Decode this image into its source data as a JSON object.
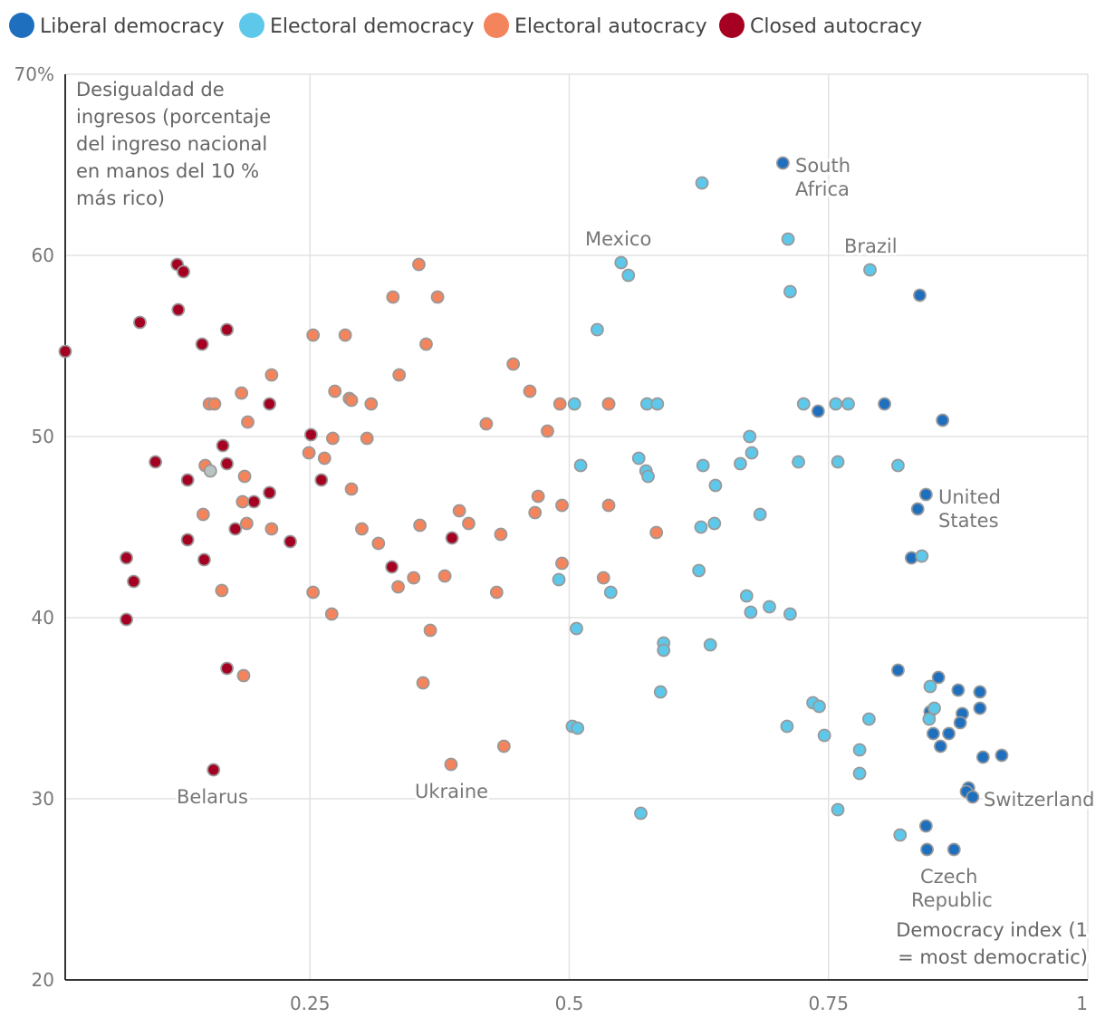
{
  "chart_data": {
    "type": "scatter",
    "title": "",
    "ylabel_lines": [
      "Desigualdad de",
      "ingresos (porcentaje",
      "del ingreso nacional",
      "en manos del 10 %",
      "más rico)"
    ],
    "xlabel_lines": [
      "Democracy index (1",
      "= most democratic)"
    ],
    "xlim": [
      0.014,
      1
    ],
    "ylim": [
      20,
      70
    ],
    "grid": true,
    "legend_position": "top",
    "xticks": {
      "values": [
        0.25,
        0.5,
        0.75,
        1
      ],
      "labels": [
        "0.25",
        "0.5",
        "0.75",
        "1"
      ]
    },
    "yticks": {
      "values": [
        20,
        30,
        40,
        50,
        60,
        70
      ],
      "labels": [
        "20",
        "30",
        "40",
        "50",
        "60",
        "70%"
      ]
    },
    "series": [
      {
        "name": "Liberal democracy",
        "color": "#1f6fbf",
        "points": [
          [
            0.706,
            65.1
          ],
          [
            0.74,
            51.4
          ],
          [
            0.804,
            51.8
          ],
          [
            0.838,
            57.8
          ],
          [
            0.86,
            50.9
          ],
          [
            0.844,
            46.8
          ],
          [
            0.836,
            46.0
          ],
          [
            0.83,
            43.3
          ],
          [
            0.817,
            37.1
          ],
          [
            0.856,
            36.7
          ],
          [
            0.875,
            36.0
          ],
          [
            0.896,
            35.9
          ],
          [
            0.848,
            34.8
          ],
          [
            0.879,
            34.7
          ],
          [
            0.896,
            35.0
          ],
          [
            0.877,
            34.2
          ],
          [
            0.851,
            33.6
          ],
          [
            0.866,
            33.6
          ],
          [
            0.858,
            32.9
          ],
          [
            0.899,
            32.3
          ],
          [
            0.917,
            32.4
          ],
          [
            0.885,
            30.6
          ],
          [
            0.883,
            30.4
          ],
          [
            0.889,
            30.1
          ],
          [
            0.844,
            28.5
          ],
          [
            0.845,
            27.2
          ],
          [
            0.871,
            27.2
          ]
        ]
      },
      {
        "name": "Electoral democracy",
        "color": "#5ec8ea",
        "points": [
          [
            0.49,
            42.1
          ],
          [
            0.507,
            39.4
          ],
          [
            0.503,
            34.0
          ],
          [
            0.508,
            33.9
          ],
          [
            0.511,
            48.4
          ],
          [
            0.505,
            51.8
          ],
          [
            0.527,
            55.9
          ],
          [
            0.538,
            51.8
          ],
          [
            0.54,
            41.4
          ],
          [
            0.55,
            59.6
          ],
          [
            0.557,
            58.9
          ],
          [
            0.567,
            48.8
          ],
          [
            0.574,
            48.1
          ],
          [
            0.576,
            47.8
          ],
          [
            0.575,
            51.8
          ],
          [
            0.585,
            51.8
          ],
          [
            0.591,
            38.6
          ],
          [
            0.591,
            38.2
          ],
          [
            0.588,
            35.9
          ],
          [
            0.569,
            29.2
          ],
          [
            0.628,
            64.0
          ],
          [
            0.625,
            42.6
          ],
          [
            0.627,
            45.0
          ],
          [
            0.629,
            48.4
          ],
          [
            0.636,
            38.5
          ],
          [
            0.64,
            45.2
          ],
          [
            0.641,
            47.3
          ],
          [
            0.665,
            48.5
          ],
          [
            0.671,
            41.2
          ],
          [
            0.674,
            50.0
          ],
          [
            0.676,
            49.1
          ],
          [
            0.675,
            40.3
          ],
          [
            0.684,
            45.7
          ],
          [
            0.693,
            40.6
          ],
          [
            0.71,
            34.0
          ],
          [
            0.711,
            60.9
          ],
          [
            0.713,
            58.0
          ],
          [
            0.713,
            40.2
          ],
          [
            0.721,
            48.6
          ],
          [
            0.726,
            51.8
          ],
          [
            0.735,
            35.3
          ],
          [
            0.741,
            35.1
          ],
          [
            0.746,
            33.5
          ],
          [
            0.757,
            51.8
          ],
          [
            0.759,
            48.6
          ],
          [
            0.759,
            29.4
          ],
          [
            0.769,
            51.8
          ],
          [
            0.78,
            32.7
          ],
          [
            0.78,
            31.4
          ],
          [
            0.789,
            34.4
          ],
          [
            0.79,
            59.2
          ],
          [
            0.817,
            48.4
          ],
          [
            0.819,
            28.0
          ],
          [
            0.84,
            43.4
          ],
          [
            0.848,
            36.2
          ],
          [
            0.847,
            34.4
          ],
          [
            0.852,
            35.0
          ]
        ]
      },
      {
        "name": "Electoral autocracy",
        "color": "#f4845c",
        "points": [
          [
            0.153,
            51.8
          ],
          [
            0.158,
            51.8
          ],
          [
            0.149,
            48.4
          ],
          [
            0.147,
            45.7
          ],
          [
            0.165,
            41.5
          ],
          [
            0.184,
            52.4
          ],
          [
            0.187,
            47.8
          ],
          [
            0.185,
            46.4
          ],
          [
            0.19,
            50.8
          ],
          [
            0.189,
            45.2
          ],
          [
            0.213,
            53.4
          ],
          [
            0.213,
            44.9
          ],
          [
            0.186,
            36.8
          ],
          [
            0.253,
            55.6
          ],
          [
            0.249,
            49.1
          ],
          [
            0.253,
            41.4
          ],
          [
            0.264,
            48.8
          ],
          [
            0.272,
            49.9
          ],
          [
            0.274,
            52.5
          ],
          [
            0.284,
            55.6
          ],
          [
            0.288,
            52.1
          ],
          [
            0.29,
            52.0
          ],
          [
            0.29,
            47.1
          ],
          [
            0.271,
            40.2
          ],
          [
            0.3,
            44.9
          ],
          [
            0.305,
            49.9
          ],
          [
            0.309,
            51.8
          ],
          [
            0.316,
            44.1
          ],
          [
            0.33,
            57.7
          ],
          [
            0.336,
            53.4
          ],
          [
            0.335,
            41.7
          ],
          [
            0.35,
            42.2
          ],
          [
            0.355,
            59.5
          ],
          [
            0.356,
            45.1
          ],
          [
            0.362,
            55.1
          ],
          [
            0.359,
            36.4
          ],
          [
            0.366,
            39.3
          ],
          [
            0.373,
            57.7
          ],
          [
            0.38,
            42.3
          ],
          [
            0.386,
            31.9
          ],
          [
            0.394,
            45.9
          ],
          [
            0.403,
            45.2
          ],
          [
            0.42,
            50.7
          ],
          [
            0.43,
            41.4
          ],
          [
            0.434,
            44.6
          ],
          [
            0.437,
            32.9
          ],
          [
            0.446,
            54.0
          ],
          [
            0.462,
            52.5
          ],
          [
            0.467,
            45.8
          ],
          [
            0.47,
            46.7
          ],
          [
            0.479,
            50.3
          ],
          [
            0.491,
            51.8
          ],
          [
            0.493,
            46.2
          ],
          [
            0.493,
            43.0
          ],
          [
            0.533,
            42.2
          ],
          [
            0.538,
            51.8
          ],
          [
            0.538,
            46.2
          ],
          [
            0.584,
            44.7
          ]
        ]
      },
      {
        "name": "Closed autocracy",
        "color": "#a50021",
        "points": [
          [
            0.014,
            54.7
          ],
          [
            0.073,
            43.3
          ],
          [
            0.08,
            42.0
          ],
          [
            0.073,
            39.9
          ],
          [
            0.086,
            56.3
          ],
          [
            0.101,
            48.6
          ],
          [
            0.122,
            59.5
          ],
          [
            0.128,
            59.1
          ],
          [
            0.123,
            57.0
          ],
          [
            0.132,
            47.6
          ],
          [
            0.132,
            44.3
          ],
          [
            0.146,
            55.1
          ],
          [
            0.148,
            43.2
          ],
          [
            0.157,
            31.6
          ],
          [
            0.166,
            49.5
          ],
          [
            0.17,
            55.9
          ],
          [
            0.17,
            48.5
          ],
          [
            0.17,
            37.2
          ],
          [
            0.178,
            44.9
          ],
          [
            0.196,
            46.4
          ],
          [
            0.211,
            51.8
          ],
          [
            0.211,
            46.9
          ],
          [
            0.231,
            44.2
          ],
          [
            0.251,
            50.1
          ],
          [
            0.261,
            47.6
          ],
          [
            0.329,
            42.8
          ],
          [
            0.387,
            44.4
          ]
        ]
      },
      {
        "name": "",
        "color": "#b8c4c4",
        "in_legend": false,
        "points": [
          [
            0.154,
            48.1
          ]
        ]
      }
    ],
    "annotations": [
      {
        "lines": [
          "South",
          "Africa"
        ]
      },
      {
        "lines": [
          "Mexico"
        ]
      },
      {
        "lines": [
          "Brazil"
        ]
      },
      {
        "lines": [
          "United",
          "States"
        ]
      },
      {
        "lines": [
          "Switzerland"
        ]
      },
      {
        "lines": [
          "Czech",
          "Republic"
        ]
      },
      {
        "lines": [
          "Belarus"
        ]
      },
      {
        "lines": [
          "Ukraine"
        ]
      }
    ]
  }
}
